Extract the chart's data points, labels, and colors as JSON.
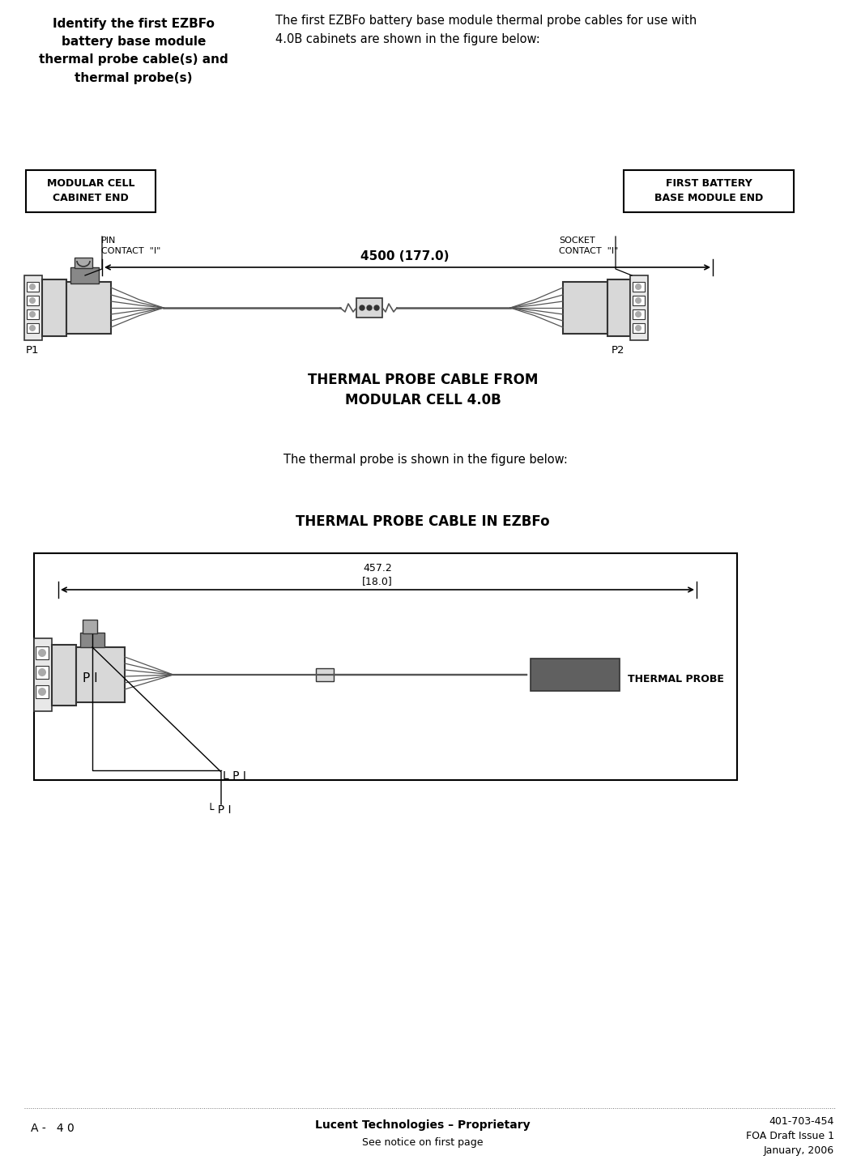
{
  "bg_color": "#ffffff",
  "page_width": 10.44,
  "page_height": 14.11,
  "header_left_text": "Identify the first EZBFo\nbattery base module\nthermal probe cable(s) and\nthermal probe(s)",
  "header_right_text": "The first EZBFo battery base module thermal probe cables for use with\n4.0B cabinets are shown in the figure below:",
  "label_modular_cell": "MODULAR CELL\nCABINET END",
  "label_first_battery": "FIRST BATTERY\nBASE MODULE END",
  "label_pin_contact": "PIN\nCONTACT  \"I\"",
  "label_socket_contact": "SOCKET\nCONTACT  \"I\"",
  "label_dimension1": "4500 (177.0)",
  "label_p1": "P1",
  "label_p2": "P2",
  "caption1": "THERMAL PROBE CABLE FROM\nMODULAR CELL 4.0B",
  "middle_text": "The thermal probe is shown in the figure below:",
  "caption2": "THERMAL PROBE CABLE IN EZBFo",
  "label_dimension2": "457.2\n[18.0]",
  "label_p1b": "P I",
  "label_p1c": "P I",
  "label_thermal_probe": "THERMAL PROBE",
  "footer_left": "A -   4 0",
  "footer_center_line1": "Lucent Technologies – Proprietary",
  "footer_center_line2": "See notice on first page",
  "footer_right_line1": "401-703-454",
  "footer_right_line2": "FOA Draft Issue 1",
  "footer_right_line3": "January, 2006",
  "line_color": "#000000",
  "connector_fill": "#d8d8d8",
  "connector_edge": "#333333",
  "side_housing_fill": "#e8e8e8",
  "cable_color": "#555555",
  "thermal_probe_fill": "#606060",
  "dark_block_fill": "#888888"
}
